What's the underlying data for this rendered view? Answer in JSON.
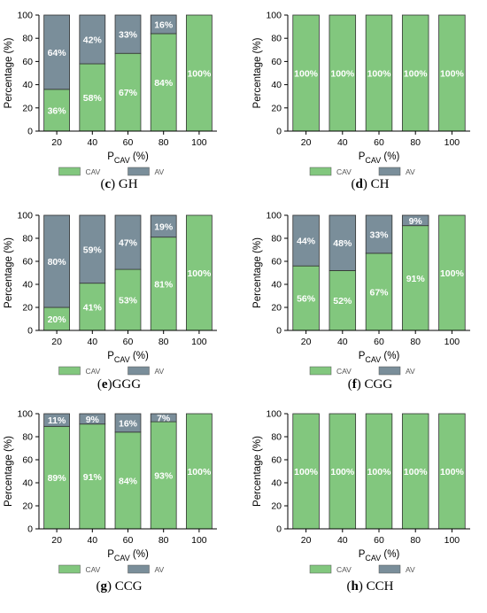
{
  "legend": {
    "cav_label": "CAV",
    "av_label": "AV"
  },
  "colors": {
    "cav": "#82c77e",
    "av": "#7a8e9a",
    "edge": "#333333"
  },
  "axes": {
    "ylabel": "Percentage (%)",
    "xlabel_main": "P",
    "xlabel_sub": "CAV",
    "xlabel_unit": " (%)"
  },
  "chart_data": [
    {
      "type": "bar",
      "stacked": true,
      "caption_letter": "(c)",
      "caption_name": " GH",
      "categories": [
        "20",
        "40",
        "60",
        "80",
        "100"
      ],
      "series": [
        {
          "name": "CAV",
          "values": [
            36,
            58,
            67,
            84,
            100
          ],
          "labels": [
            "36%",
            "58%",
            "67%",
            "84%",
            "100%"
          ]
        },
        {
          "name": "AV",
          "values": [
            64,
            42,
            33,
            16,
            0
          ],
          "labels": [
            "64%",
            "42%",
            "33%",
            "16%",
            ""
          ]
        }
      ],
      "ylim": [
        0,
        100
      ],
      "yticks": [
        "0",
        "20",
        "40",
        "60",
        "80",
        "100"
      ]
    },
    {
      "type": "bar",
      "stacked": true,
      "caption_letter": "(d)",
      "caption_name": " CH",
      "categories": [
        "20",
        "40",
        "60",
        "80",
        "100"
      ],
      "series": [
        {
          "name": "CAV",
          "values": [
            100,
            100,
            100,
            100,
            100
          ],
          "labels": [
            "100%",
            "100%",
            "100%",
            "100%",
            "100%"
          ]
        },
        {
          "name": "AV",
          "values": [
            0,
            0,
            0,
            0,
            0
          ],
          "labels": [
            "",
            "",
            "",
            "",
            ""
          ]
        }
      ],
      "ylim": [
        0,
        100
      ],
      "yticks": [
        "0",
        "20",
        "40",
        "60",
        "80",
        "100"
      ]
    },
    {
      "type": "bar",
      "stacked": true,
      "caption_letter": "(e)",
      "caption_name": "GGG",
      "categories": [
        "20",
        "40",
        "60",
        "80",
        "100"
      ],
      "series": [
        {
          "name": "CAV",
          "values": [
            20,
            41,
            53,
            81,
            100
          ],
          "labels": [
            "20%",
            "41%",
            "53%",
            "81%",
            "100%"
          ]
        },
        {
          "name": "AV",
          "values": [
            80,
            59,
            47,
            19,
            0
          ],
          "labels": [
            "80%",
            "59%",
            "47%",
            "19%",
            ""
          ]
        }
      ],
      "ylim": [
        0,
        100
      ],
      "yticks": [
        "0",
        "20",
        "40",
        "60",
        "80",
        "100"
      ]
    },
    {
      "type": "bar",
      "stacked": true,
      "caption_letter": "(f)",
      "caption_name": " CGG",
      "categories": [
        "20",
        "40",
        "60",
        "80",
        "100"
      ],
      "series": [
        {
          "name": "CAV",
          "values": [
            56,
            52,
            67,
            91,
            100
          ],
          "labels": [
            "56%",
            "52%",
            "67%",
            "91%",
            "100%"
          ]
        },
        {
          "name": "AV",
          "values": [
            44,
            48,
            33,
            9,
            0
          ],
          "labels": [
            "44%",
            "48%",
            "33%",
            "9%",
            ""
          ]
        }
      ],
      "ylim": [
        0,
        100
      ],
      "yticks": [
        "0",
        "20",
        "40",
        "60",
        "80",
        "100"
      ]
    },
    {
      "type": "bar",
      "stacked": true,
      "caption_letter": "(g)",
      "caption_name": " CCG",
      "categories": [
        "20",
        "40",
        "60",
        "80",
        "100"
      ],
      "series": [
        {
          "name": "CAV",
          "values": [
            89,
            91,
            84,
            93,
            100
          ],
          "labels": [
            "89%",
            "91%",
            "84%",
            "93%",
            "100%"
          ]
        },
        {
          "name": "AV",
          "values": [
            11,
            9,
            16,
            7,
            0
          ],
          "labels": [
            "11%",
            "9%",
            "16%",
            "7%",
            ""
          ]
        }
      ],
      "ylim": [
        0,
        100
      ],
      "yticks": [
        "0",
        "20",
        "40",
        "60",
        "80",
        "100"
      ]
    },
    {
      "type": "bar",
      "stacked": true,
      "caption_letter": "(h)",
      "caption_name": " CCH",
      "categories": [
        "20",
        "40",
        "60",
        "80",
        "100"
      ],
      "series": [
        {
          "name": "CAV",
          "values": [
            100,
            100,
            100,
            100,
            100
          ],
          "labels": [
            "100%",
            "100%",
            "100%",
            "100%",
            "100%"
          ]
        },
        {
          "name": "AV",
          "values": [
            0,
            0,
            0,
            0,
            0
          ],
          "labels": [
            "",
            "",
            "",
            "",
            ""
          ]
        }
      ],
      "ylim": [
        0,
        100
      ],
      "yticks": [
        "0",
        "20",
        "40",
        "60",
        "80",
        "100"
      ]
    }
  ]
}
